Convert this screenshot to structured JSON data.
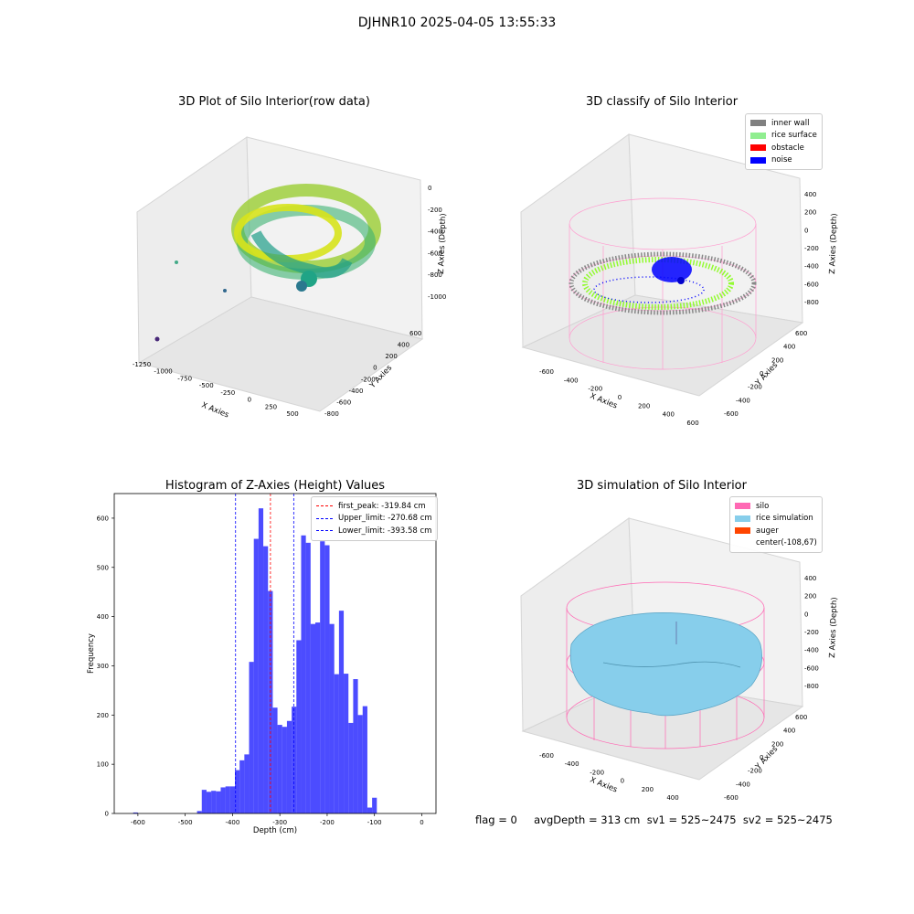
{
  "suptitle": "DJHNR10 2025-04-05 13:55:33",
  "footer": "flag = 0     avgDepth = 313 cm  sv1 = 525~2475  sv2 = 525~2475",
  "chart_data": [
    {
      "type": "scatter",
      "title": "3D Plot of Silo Interior(row data)",
      "xlabel": "X Axies",
      "ylabel": "Y Axies",
      "zlabel": "Z Axies (Depth)",
      "x_ticks": [
        "-1250",
        "-1000",
        "-750",
        "-500",
        "-250",
        "0",
        "250",
        "500"
      ],
      "y_ticks": [
        "600",
        "400",
        "200",
        "0",
        "-200",
        "-400",
        "-600",
        "-800"
      ],
      "z_ticks": [
        "0",
        "-200",
        "-400",
        "-600",
        "-800",
        "-1000"
      ],
      "colormap": "viridis"
    },
    {
      "type": "scatter",
      "title": "3D classify of Silo Interior",
      "xlabel": "X Axies",
      "ylabel": "Y Axies",
      "zlabel": "Z Axies (Depth)",
      "x_ticks": [
        "-600",
        "-400",
        "-200",
        "0",
        "200",
        "400",
        "600"
      ],
      "y_ticks": [
        "600",
        "400",
        "200",
        "0",
        "-200",
        "-400",
        "-600"
      ],
      "z_ticks": [
        "400",
        "200",
        "0",
        "-200",
        "-400",
        "-600",
        "-800"
      ],
      "legend": [
        {
          "label": "inner wall",
          "color": "#808080"
        },
        {
          "label": "rice surface",
          "color": "#90ee90"
        },
        {
          "label": "obstacle",
          "color": "#ff0000"
        },
        {
          "label": "noise",
          "color": "#0000ff"
        }
      ],
      "legend_position": "top-right"
    },
    {
      "type": "bar",
      "title": "Histogram of Z-Axies (Height) Values",
      "xlabel": "Depth (cm)",
      "ylabel": "Frequency",
      "xlim": [
        -650,
        30
      ],
      "ylim": [
        0,
        650
      ],
      "x_ticks": [
        -600,
        -500,
        -400,
        -300,
        -200,
        -100,
        0
      ],
      "y_ticks": [
        0,
        100,
        200,
        300,
        400,
        500,
        600
      ],
      "bar_color": "#0000ff",
      "bars": [
        {
          "x0": -610,
          "x1": -600,
          "v": 2
        },
        {
          "x0": -475,
          "x1": -465,
          "v": 5
        },
        {
          "x0": -465,
          "x1": -455,
          "v": 48
        },
        {
          "x0": -455,
          "x1": -445,
          "v": 44
        },
        {
          "x0": -445,
          "x1": -435,
          "v": 46
        },
        {
          "x0": -435,
          "x1": -425,
          "v": 45
        },
        {
          "x0": -425,
          "x1": -415,
          "v": 53
        },
        {
          "x0": -415,
          "x1": -405,
          "v": 55
        },
        {
          "x0": -405,
          "x1": -395,
          "v": 55
        },
        {
          "x0": -395,
          "x1": -385,
          "v": 88
        },
        {
          "x0": -385,
          "x1": -375,
          "v": 108
        },
        {
          "x0": -375,
          "x1": -365,
          "v": 120
        },
        {
          "x0": -365,
          "x1": -355,
          "v": 308
        },
        {
          "x0": -355,
          "x1": -345,
          "v": 558
        },
        {
          "x0": -345,
          "x1": -335,
          "v": 620
        },
        {
          "x0": -335,
          "x1": -325,
          "v": 543
        },
        {
          "x0": -325,
          "x1": -315,
          "v": 452
        },
        {
          "x0": -315,
          "x1": -305,
          "v": 215
        },
        {
          "x0": -305,
          "x1": -295,
          "v": 180
        },
        {
          "x0": -295,
          "x1": -285,
          "v": 176
        },
        {
          "x0": -285,
          "x1": -275,
          "v": 188
        },
        {
          "x0": -275,
          "x1": -265,
          "v": 217
        },
        {
          "x0": -265,
          "x1": -255,
          "v": 352
        },
        {
          "x0": -255,
          "x1": -245,
          "v": 565
        },
        {
          "x0": -245,
          "x1": -235,
          "v": 550
        },
        {
          "x0": -235,
          "x1": -225,
          "v": 385
        },
        {
          "x0": -225,
          "x1": -215,
          "v": 388
        },
        {
          "x0": -215,
          "x1": -205,
          "v": 553
        },
        {
          "x0": -205,
          "x1": -195,
          "v": 545
        },
        {
          "x0": -195,
          "x1": -185,
          "v": 385
        },
        {
          "x0": -185,
          "x1": -175,
          "v": 283
        },
        {
          "x0": -175,
          "x1": -165,
          "v": 412
        },
        {
          "x0": -165,
          "x1": -155,
          "v": 284
        },
        {
          "x0": -155,
          "x1": -145,
          "v": 184
        },
        {
          "x0": -145,
          "x1": -135,
          "v": 273
        },
        {
          "x0": -135,
          "x1": -125,
          "v": 200
        },
        {
          "x0": -125,
          "x1": -115,
          "v": 218
        },
        {
          "x0": -115,
          "x1": -105,
          "v": 12
        },
        {
          "x0": -105,
          "x1": -95,
          "v": 32
        }
      ],
      "vlines": [
        {
          "x": -319.84,
          "color": "#ff0000",
          "label": "first_peak: -319.84 cm"
        },
        {
          "x": -270.68,
          "color": "#0000ff",
          "label": "Upper_limit: -270.68 cm"
        },
        {
          "x": -393.58,
          "color": "#0000ff",
          "label": "Lower_limit: -393.58 cm"
        }
      ],
      "legend_position": "top-right"
    },
    {
      "type": "surface",
      "title": "3D simulation of Silo Interior",
      "xlabel": "X Axies",
      "ylabel": "Y Axies",
      "zlabel": "Z Axies (Depth)",
      "x_ticks": [
        "-600",
        "-400",
        "-200",
        "0",
        "200",
        "400"
      ],
      "y_ticks": [
        "600",
        "400",
        "200",
        "0",
        "-200",
        "-400",
        "-600"
      ],
      "z_ticks": [
        "400",
        "200",
        "0",
        "-200",
        "-400",
        "-600",
        "-800"
      ],
      "legend": [
        {
          "label": "silo",
          "color": "#ff69b4"
        },
        {
          "label": "rice simulation",
          "color": "#87ceeb"
        },
        {
          "label": "auger",
          "color": "#ff4500"
        },
        {
          "label": "center(-108,67)",
          "color": ""
        }
      ],
      "legend_position": "top-right"
    }
  ]
}
